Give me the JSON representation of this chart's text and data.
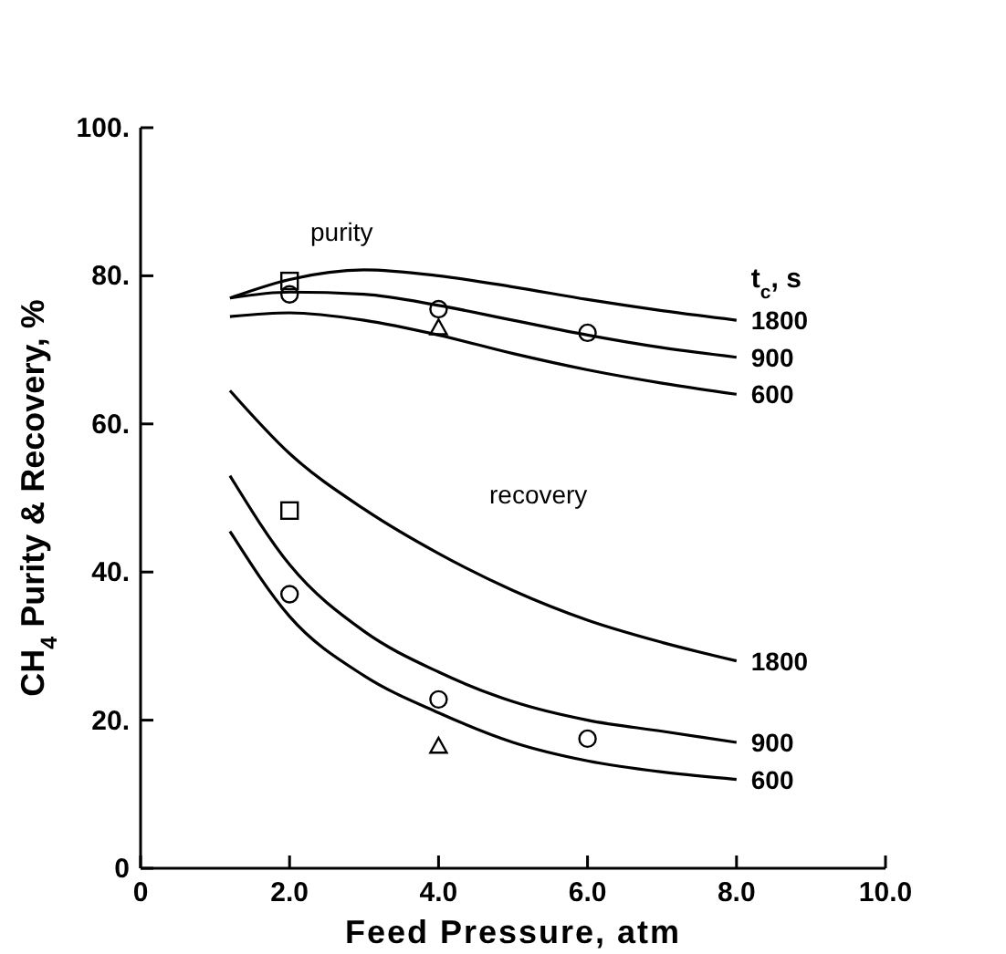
{
  "chart_data": {
    "type": "line",
    "xlabel": "Feed Pressure, atm",
    "ylabel": "CH$_{4}$ Purity & Recovery, %",
    "legend_title": "t$_{c}$, s",
    "grid": false,
    "xlim": [
      0,
      10
    ],
    "ylim": [
      0,
      100
    ],
    "xticks": [
      0,
      {
        "value": 2,
        "label": "2.0"
      },
      {
        "value": 4,
        "label": "4.0"
      },
      {
        "value": 6,
        "label": "6.0"
      },
      {
        "value": 8,
        "label": "8.0"
      },
      {
        "value": 10,
        "label": "10.0"
      }
    ],
    "yticks": [
      0,
      {
        "value": 20,
        "label": "20."
      },
      {
        "value": 40,
        "label": "40."
      },
      {
        "value": 60,
        "label": "60."
      },
      {
        "value": 80,
        "label": "80."
      },
      {
        "value": 100,
        "label": "100."
      }
    ],
    "annotations": [
      "purity",
      "recovery"
    ],
    "series": [
      {
        "name": "1800",
        "color": "#000000",
        "marker": "none",
        "x": [
          1.2,
          2,
          3,
          4,
          5,
          6,
          7,
          8
        ],
        "values": [
          77,
          79.5,
          80.8,
          80,
          78.5,
          76.8,
          75.3,
          74
        ]
      },
      {
        "name": "900",
        "color": "#000000",
        "marker": "none",
        "x": [
          1.2,
          2,
          3,
          4,
          5,
          6,
          7,
          8
        ],
        "values": [
          77,
          77.8,
          77.5,
          76,
          74,
          72,
          70.3,
          69
        ]
      },
      {
        "name": "600",
        "color": "#000000",
        "marker": "none",
        "x": [
          1.2,
          2,
          3,
          4,
          5,
          6,
          7,
          8
        ],
        "values": [
          74.5,
          75,
          74,
          72,
          69.5,
          67.3,
          65.5,
          64
        ]
      },
      {
        "name": "1800",
        "color": "#000000",
        "marker": "none",
        "x": [
          1.2,
          2,
          3,
          4,
          5,
          6,
          7,
          8
        ],
        "values": [
          64.5,
          56,
          48.5,
          42.5,
          37.5,
          33.5,
          30.5,
          28
        ]
      },
      {
        "name": "900",
        "color": "#000000",
        "marker": "none",
        "x": [
          1.2,
          2,
          3,
          4,
          5,
          6,
          7,
          8
        ],
        "values": [
          53,
          41,
          32,
          26.5,
          22.5,
          20,
          18.5,
          17
        ]
      },
      {
        "name": "600",
        "color": "#000000",
        "marker": "none",
        "x": [
          1.2,
          2,
          3,
          4,
          5,
          6,
          7,
          8
        ],
        "values": [
          45.5,
          34,
          26,
          21,
          17,
          14.5,
          13,
          12
        ]
      },
      {
        "type": "scatter",
        "color": "#000000",
        "marker": "circle",
        "x": [
          2,
          4,
          6,
          2,
          4,
          6
        ],
        "values": [
          77.5,
          75.5,
          72.3,
          37,
          22.8,
          17.5
        ]
      },
      {
        "type": "scatter",
        "color": "#000000",
        "marker": "square",
        "x": [
          2,
          2
        ],
        "values": [
          79.3,
          48.3
        ]
      },
      {
        "type": "scatter",
        "color": "#000000",
        "marker": "triangle",
        "x": [
          4,
          4
        ],
        "values": [
          73,
          16.5
        ]
      }
    ]
  }
}
